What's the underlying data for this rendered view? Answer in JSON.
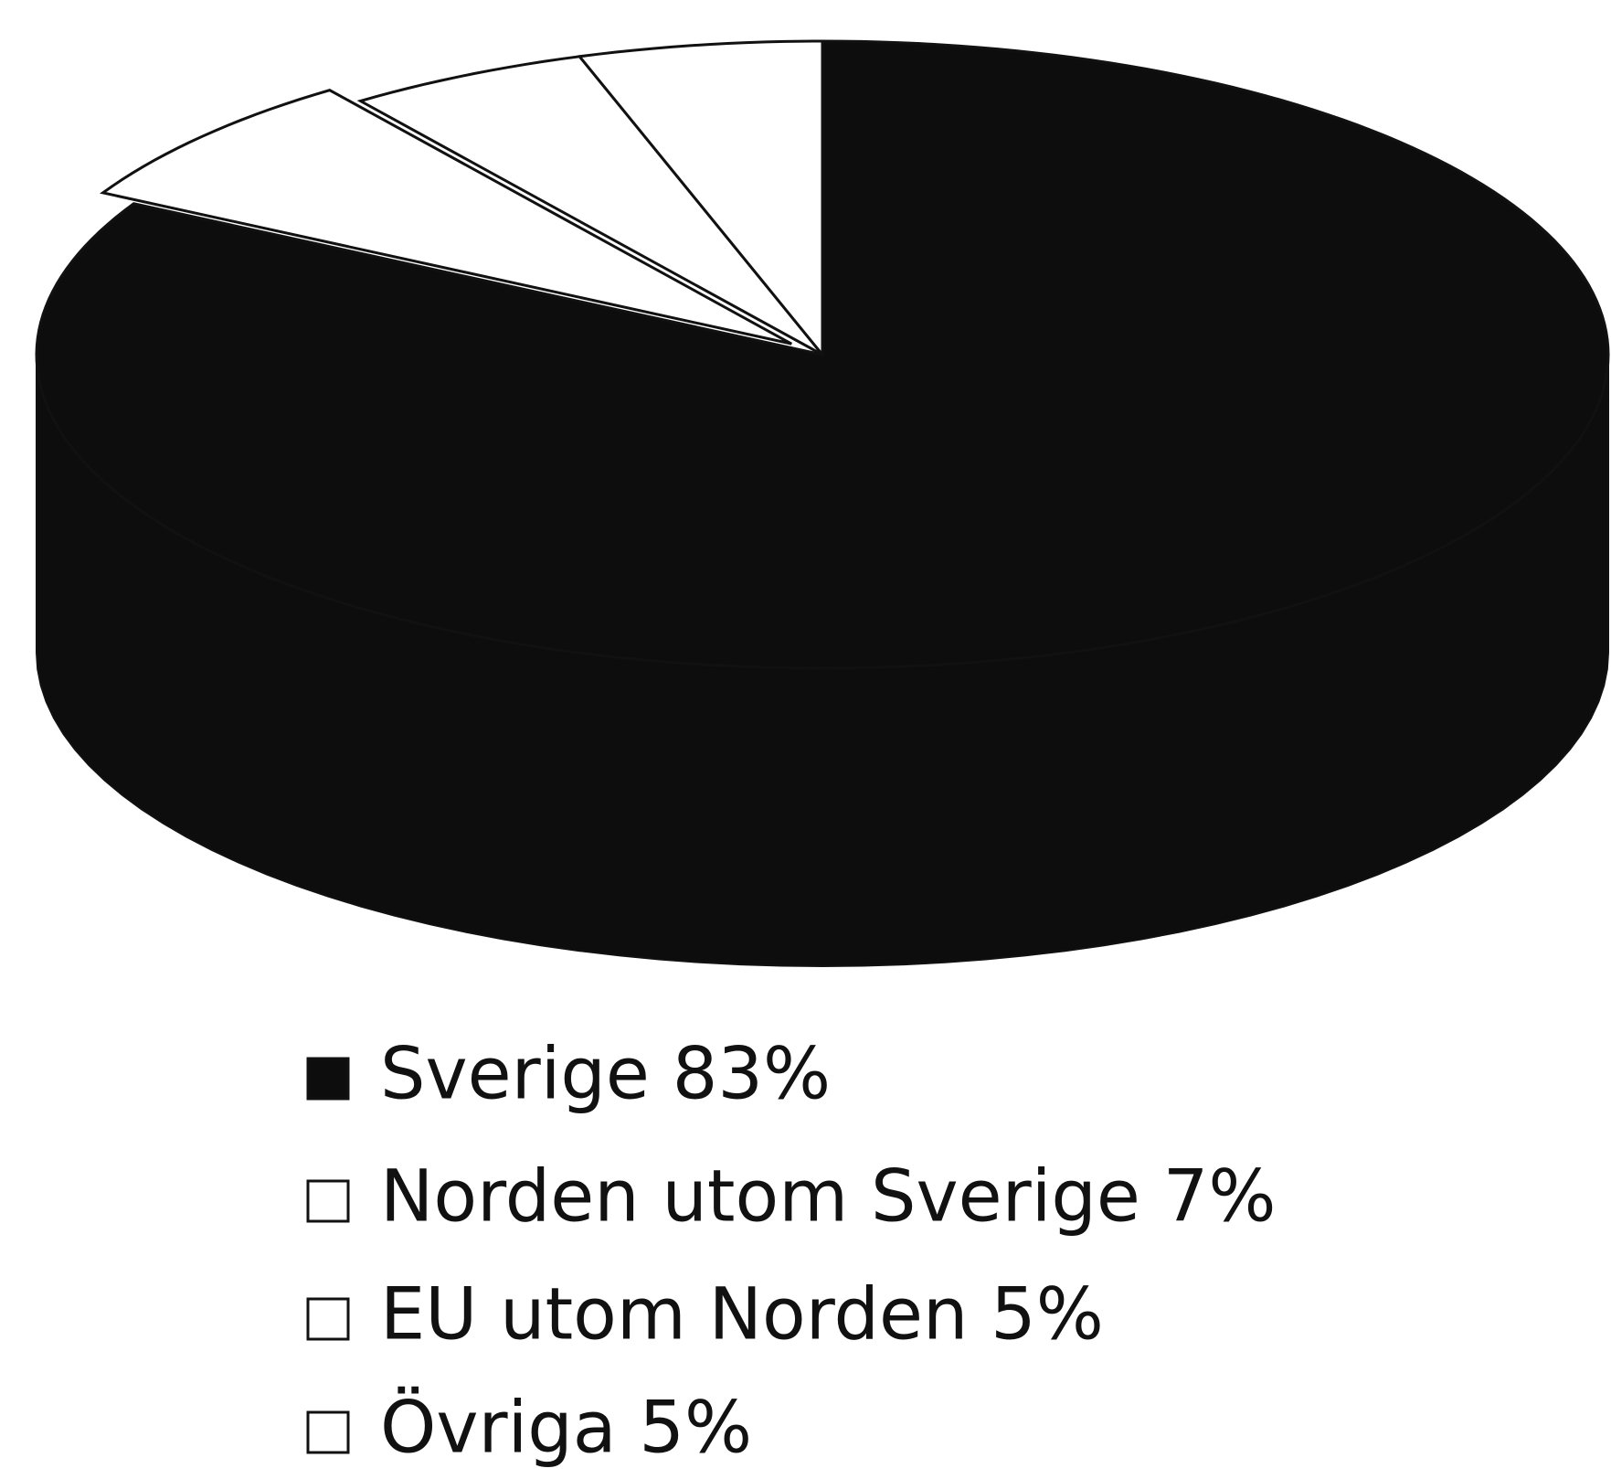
{
  "chart_data": {
    "type": "pie3d",
    "categories": [
      "Sverige 83%",
      "Norden utom Sverige 7%",
      "EU utom Norden 5%",
      "Övriga 5%"
    ],
    "values": [
      83,
      7,
      5,
      5
    ],
    "colors": [
      "#0d0d0d",
      "#ffffff",
      "#ffffff",
      "#ffffff"
    ],
    "legend": "bottom"
  }
}
